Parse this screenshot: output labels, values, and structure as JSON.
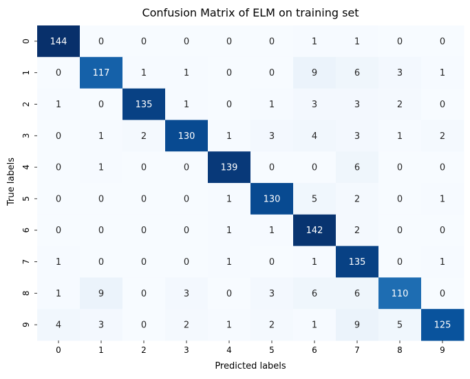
{
  "chart_data": {
    "type": "heatmap",
    "title": "Confusion Matrix of ELM on training set",
    "xlabel": "Predicted labels",
    "ylabel": "True labels",
    "x_tick_labels": [
      "0",
      "1",
      "2",
      "3",
      "4",
      "5",
      "6",
      "7",
      "8",
      "9"
    ],
    "y_tick_labels": [
      "0",
      "1",
      "2",
      "3",
      "4",
      "5",
      "6",
      "7",
      "8",
      "9"
    ],
    "colormap": "Blues",
    "colorbar": false,
    "value_range": [
      0,
      144
    ],
    "matrix": [
      [
        144,
        0,
        0,
        0,
        0,
        0,
        1,
        1,
        0,
        0
      ],
      [
        0,
        117,
        1,
        1,
        0,
        0,
        9,
        6,
        3,
        1
      ],
      [
        1,
        0,
        135,
        1,
        0,
        1,
        3,
        3,
        2,
        0
      ],
      [
        0,
        1,
        2,
        130,
        1,
        3,
        4,
        3,
        1,
        2
      ],
      [
        0,
        1,
        0,
        0,
        139,
        0,
        0,
        6,
        0,
        0
      ],
      [
        0,
        0,
        0,
        0,
        1,
        130,
        5,
        2,
        0,
        1
      ],
      [
        0,
        0,
        0,
        0,
        1,
        1,
        142,
        2,
        0,
        0
      ],
      [
        1,
        0,
        0,
        0,
        1,
        0,
        1,
        135,
        0,
        1
      ],
      [
        1,
        9,
        0,
        3,
        0,
        3,
        6,
        6,
        110,
        0
      ],
      [
        4,
        3,
        0,
        2,
        1,
        2,
        1,
        9,
        5,
        125
      ]
    ]
  }
}
